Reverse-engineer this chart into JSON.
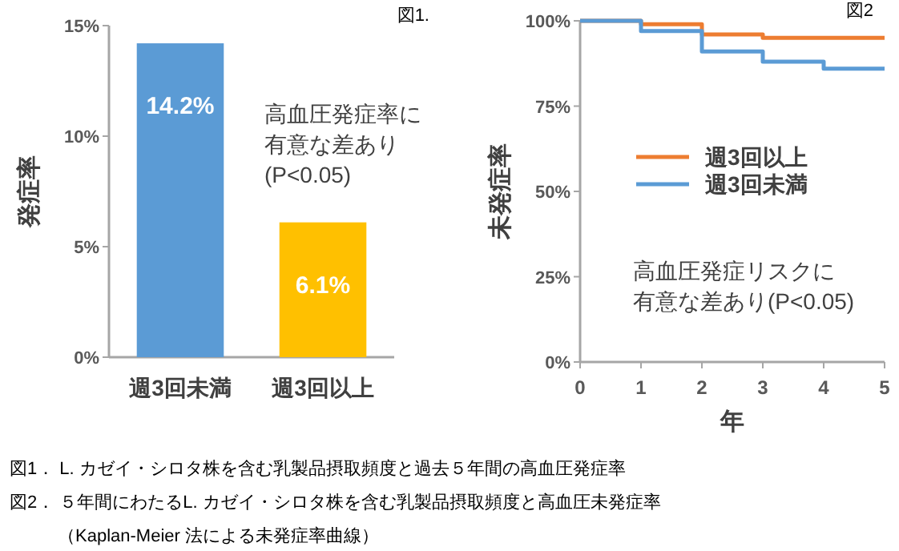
{
  "chart_data": [
    {
      "type": "bar",
      "title": "図1.",
      "ylabel": "発症率",
      "categories": [
        "週3回未満",
        "週3回以上"
      ],
      "values": [
        14.2,
        6.1
      ],
      "colors": [
        "#5b9bd5",
        "#ffc000"
      ],
      "value_labels": [
        "14.2%",
        "6.1%"
      ],
      "ylim": [
        0,
        15
      ],
      "yticks": [
        {
          "value": 0,
          "label": "0%"
        },
        {
          "value": 5,
          "label": "5%"
        },
        {
          "value": 10,
          "label": "10%"
        },
        {
          "value": 15,
          "label": "15%"
        }
      ],
      "grid": false,
      "annotations": [
        "高血圧発症率に",
        "有意な差あり",
        "(P<0.05)",
        "図1．  L. カゼイ・シロタ株を含む乳製品摂取頻度と過去５年間の高血圧発症率"
      ]
    },
    {
      "type": "step",
      "title": "図2",
      "xlabel": "年",
      "ylabel": "未発症率",
      "x": [
        0,
        1,
        2,
        3,
        4,
        5
      ],
      "series": [
        {
          "name": "週3回以上",
          "color": "#ed7d31",
          "values": [
            100,
            99,
            96,
            95,
            95,
            95
          ]
        },
        {
          "name": "週3回未満",
          "color": "#5b9bd5",
          "values": [
            100,
            97,
            91,
            88,
            86,
            86
          ]
        }
      ],
      "xlim": [
        0,
        5
      ],
      "xticks": [
        0,
        1,
        2,
        3,
        4,
        5
      ],
      "ylim": [
        0,
        100
      ],
      "yticks": [
        {
          "value": 0,
          "label": "0%"
        },
        {
          "value": 25,
          "label": "25%"
        },
        {
          "value": 50,
          "label": "50%"
        },
        {
          "value": 75,
          "label": "75%"
        },
        {
          "value": 100,
          "label": "100%"
        }
      ],
      "grid": false,
      "legend": "center",
      "annotations": [
        "高血圧発症リスクに",
        "有意な差あり(P<0.05)",
        "図2．  ５年間にわたるL. カゼイ・シロタ株を含む乳製品摂取頻度と高血圧未発症率",
        "（Kaplan-Meier 法による未発症率曲線）"
      ]
    }
  ]
}
